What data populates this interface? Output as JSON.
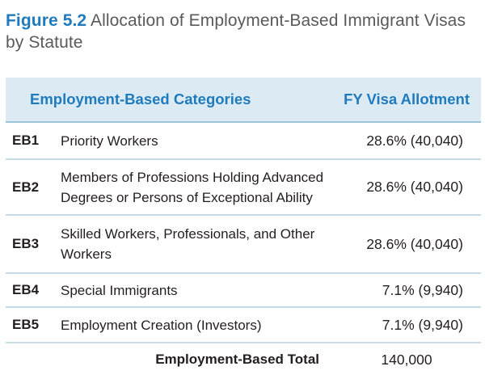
{
  "figure": {
    "label": "Figure 5.2",
    "title": "Allocation of Employment-Based Immigrant Visas by Statute"
  },
  "table": {
    "headers": {
      "category": "Employment-Based Categories",
      "allotment": "FY Visa Allotment"
    },
    "rows": [
      {
        "code": "EB1",
        "description": "Priority Workers",
        "allotment": "28.6% (40,040)"
      },
      {
        "code": "EB2",
        "description": "Members of Professions Holding Advanced Degrees or Persons of Exceptional Ability",
        "allotment": "28.6% (40,040)"
      },
      {
        "code": "EB3",
        "description": "Skilled Workers, Professionals, and Other Workers",
        "allotment": "28.6% (40,040)"
      },
      {
        "code": "EB4",
        "description": "Special Immigrants",
        "allotment": "7.1% (9,940)"
      },
      {
        "code": "EB5",
        "description": "Employment Creation (Investors)",
        "allotment": "7.1% (9,940)"
      }
    ],
    "total": {
      "label": "Employment-Based Total",
      "value": "140,000"
    }
  },
  "colors": {
    "accent": "#1f7bbd",
    "header_background": "#dcebf3",
    "row_divider": "#c6dbe8"
  }
}
